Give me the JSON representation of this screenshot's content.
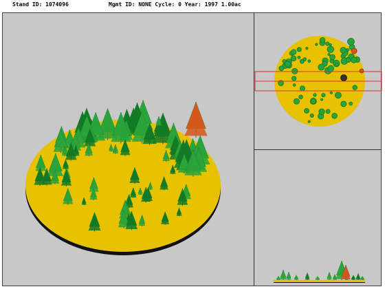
{
  "header": {
    "stand_id": "Stand ID: 1074096",
    "mgmt_info": "Mgmt ID: NONE Cycle: 0 Year: 1997 1.00ac"
  },
  "colors": {
    "ground": "#e6c200",
    "ground_edge": "#101010",
    "background": "#c8c8c8",
    "conifer": "#2aa33a",
    "conifer_dark": "#137a26",
    "dead_tree": "#d4581b",
    "selection_box": "#e03030"
  },
  "views": {
    "perspective": "perspective-view",
    "plan": "plan-view",
    "profile": "profile-view"
  }
}
